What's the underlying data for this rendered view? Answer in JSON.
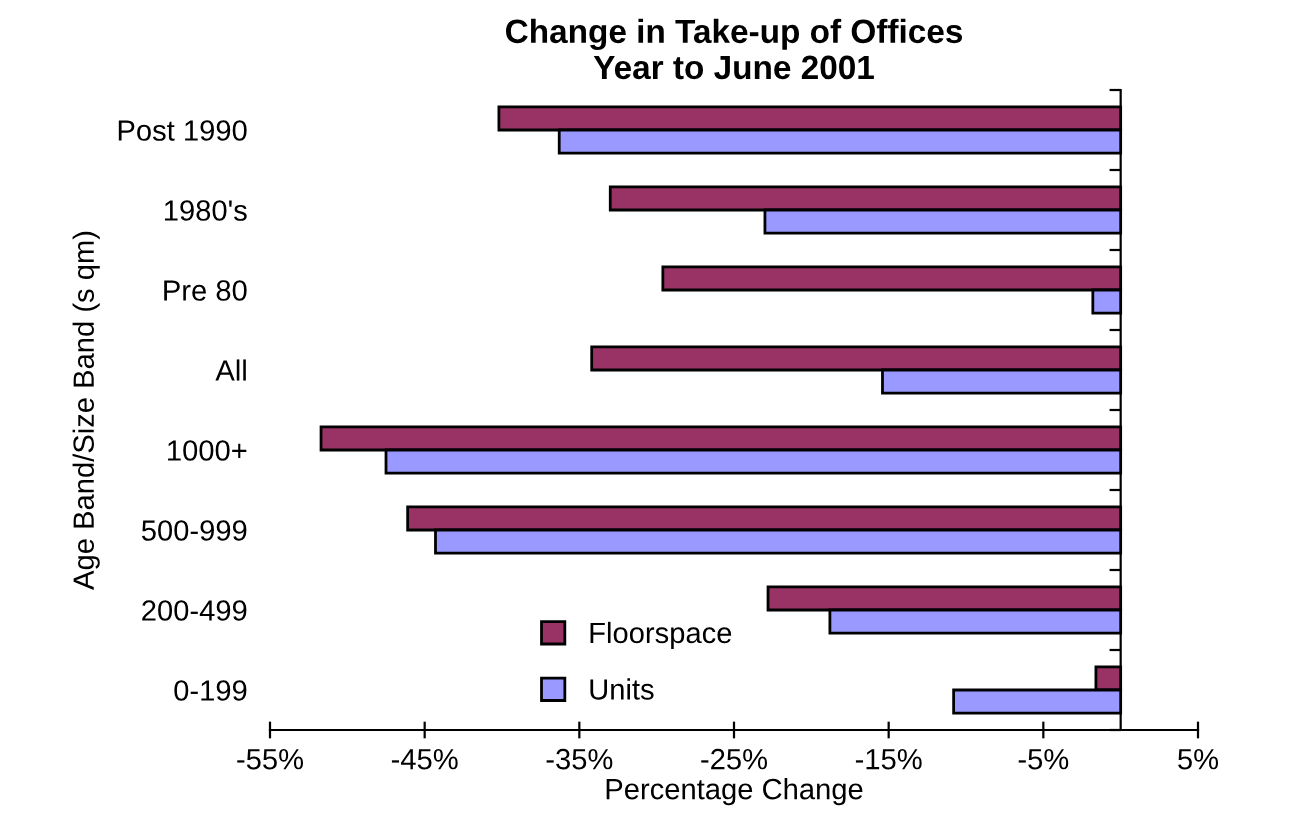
{
  "chart_data": {
    "type": "bar",
    "orientation": "horizontal",
    "title": "Change in Take-up of Offices\nYear to June 2001",
    "categories": [
      "Post 1990",
      "1980's",
      "Pre 80",
      "All",
      "1000+",
      "500-999",
      "200-499",
      "0-199"
    ],
    "series": [
      {
        "name": "Floorspace",
        "color": "#993366",
        "values": [
          -40.2,
          -33.0,
          -29.6,
          -34.2,
          -51.7,
          -46.1,
          -22.8,
          -1.6
        ]
      },
      {
        "name": "Units",
        "color": "#9999ff",
        "values": [
          -36.3,
          -23.0,
          -1.8,
          -15.4,
          -47.5,
          -44.3,
          -18.8,
          -10.8
        ]
      }
    ],
    "xlim": [
      -55,
      5
    ],
    "xticks": [
      {
        "value": -55,
        "label": "-55%"
      },
      {
        "value": -45,
        "label": "-45%"
      },
      {
        "value": -35,
        "label": "-35%"
      },
      {
        "value": -25,
        "label": "-25%"
      },
      {
        "value": -15,
        "label": "-15%"
      },
      {
        "value": -5,
        "label": "-5%"
      },
      {
        "value": 5,
        "label": "5%"
      }
    ],
    "xlabel": "Percentage Change",
    "ylabel": "Age Band/Size Band (s qm)",
    "grid": false,
    "legend": "bottom left"
  }
}
